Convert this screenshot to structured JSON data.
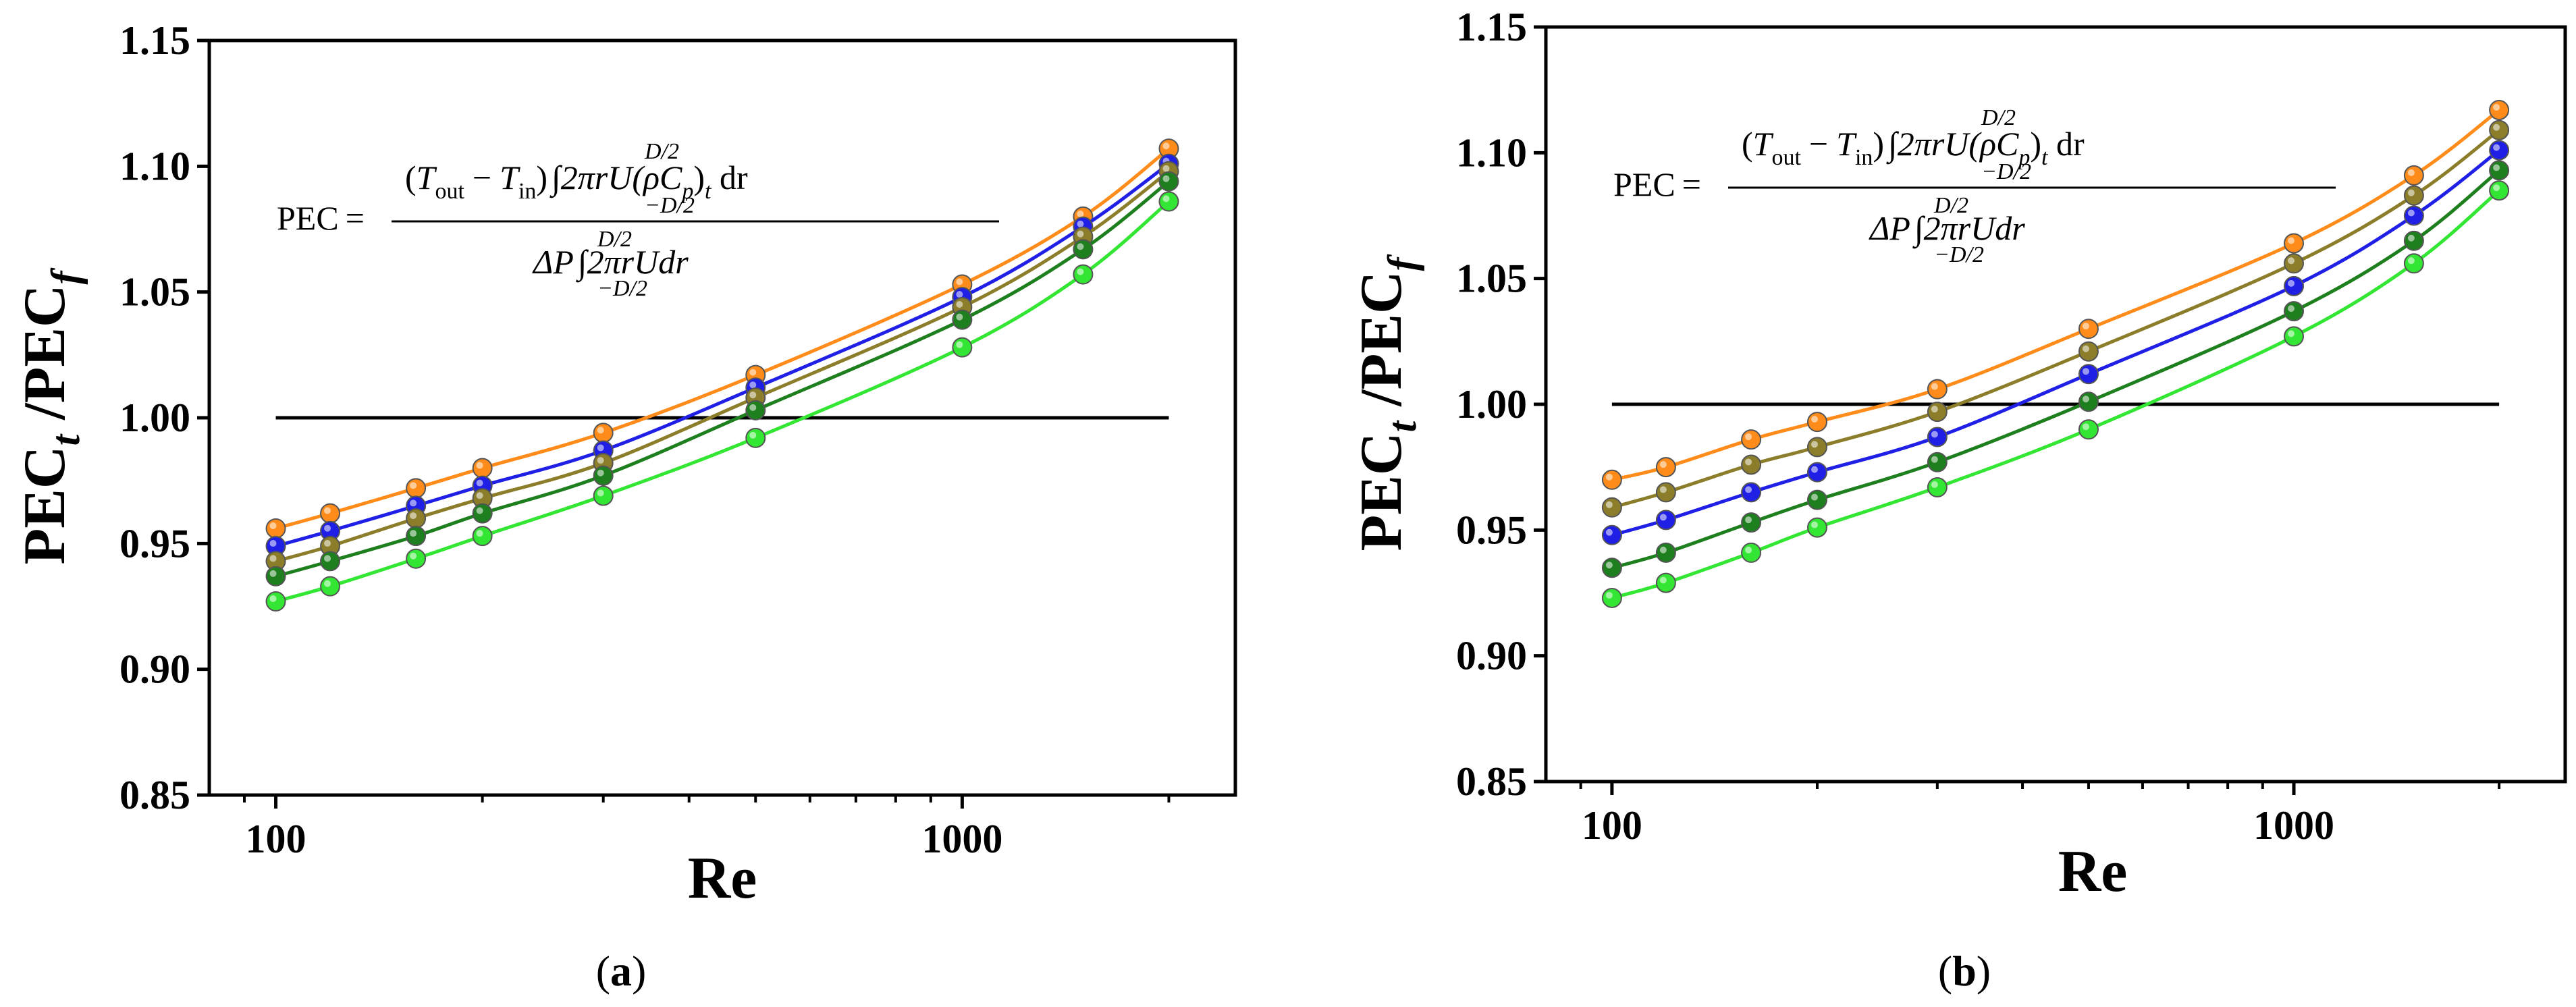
{
  "figure": {
    "panels": [
      {
        "caption": "(a)",
        "caption_letter": "a"
      },
      {
        "caption": "(b)",
        "caption_letter": "b"
      }
    ]
  },
  "formula": {
    "lhs": "PEC",
    "equals": "=",
    "numerator": {
      "T": "T",
      "out": "out",
      "minus": "−",
      "in": "in",
      "upper_limit": "D/2",
      "lower_limit": "−D/2",
      "integrand": "2πrU(ρC",
      "sub_p": "p",
      "close": ")",
      "sub_t": "t",
      "dr": " dr"
    },
    "denominator": {
      "delta_p": "ΔP",
      "upper_limit": "D/2",
      "lower_limit": "−D/2",
      "integrand": "2πrUdr"
    }
  },
  "chart_data": [
    {
      "type": "line",
      "panel": "a",
      "xlabel": "Re",
      "ylabel": "PEC_t / PEC_f",
      "xscale": "log",
      "xlim": [
        80,
        2500
      ],
      "ylim": [
        0.85,
        1.15
      ],
      "xticks": [
        100,
        1000
      ],
      "xtick_labels": [
        "100",
        "1000"
      ],
      "yticks": [
        0.85,
        0.9,
        0.95,
        1.0,
        1.05,
        1.1,
        1.15
      ],
      "ytick_labels": [
        "0.85",
        "0.90",
        "0.95",
        "1.00",
        "1.05",
        "1.10",
        "1.15"
      ],
      "reference_line": {
        "y": 1.0,
        "x_from": 100,
        "x_to": 2000,
        "color": "#000000"
      },
      "x": [
        100,
        120,
        160,
        200,
        300,
        500,
        1000,
        1500,
        2000
      ],
      "series": [
        {
          "name": "orange",
          "color": "#ff8c1a",
          "values": [
            0.956,
            0.962,
            0.972,
            0.98,
            0.994,
            1.017,
            1.053,
            1.08,
            1.107
          ]
        },
        {
          "name": "blue",
          "color": "#1f1fe6",
          "values": [
            0.949,
            0.955,
            0.965,
            0.973,
            0.987,
            1.012,
            1.048,
            1.076,
            1.101
          ]
        },
        {
          "name": "olive",
          "color": "#8b7d2a",
          "values": [
            0.943,
            0.949,
            0.96,
            0.968,
            0.982,
            1.008,
            1.044,
            1.072,
            1.098
          ]
        },
        {
          "name": "dark-green",
          "color": "#1e7f1e",
          "values": [
            0.937,
            0.943,
            0.953,
            0.962,
            0.977,
            1.003,
            1.039,
            1.067,
            1.094
          ]
        },
        {
          "name": "bright-green",
          "color": "#33e633",
          "values": [
            0.927,
            0.933,
            0.944,
            0.953,
            0.969,
            0.992,
            1.028,
            1.057,
            1.086
          ]
        }
      ]
    },
    {
      "type": "line",
      "panel": "b",
      "xlabel": "Re",
      "ylabel": "PEC_t / PEC_f",
      "xscale": "log",
      "xlim": [
        80,
        2500
      ],
      "ylim": [
        0.85,
        1.15
      ],
      "xticks": [
        100,
        1000
      ],
      "xtick_labels": [
        "100",
        "1000"
      ],
      "yticks": [
        0.85,
        0.9,
        0.95,
        1.0,
        1.05,
        1.1,
        1.15
      ],
      "ytick_labels": [
        "0.85",
        "0.90",
        "0.95",
        "1.00",
        "1.05",
        "1.10",
        "1.15"
      ],
      "reference_line": {
        "y": 1.0,
        "x_from": 100,
        "x_to": 2000,
        "color": "#000000"
      },
      "x": [
        100,
        120,
        160,
        200,
        300,
        500,
        1000,
        1500,
        2000
      ],
      "series": [
        {
          "name": "orange",
          "color": "#ff8c1a",
          "values": [
            0.97,
            0.975,
            0.986,
            0.993,
            1.006,
            1.03,
            1.064,
            1.091,
            1.117
          ]
        },
        {
          "name": "olive",
          "color": "#8b7d2a",
          "values": [
            0.959,
            0.965,
            0.976,
            0.983,
            0.997,
            1.021,
            1.056,
            1.083,
            1.109
          ]
        },
        {
          "name": "blue",
          "color": "#1f1fe6",
          "values": [
            0.948,
            0.954,
            0.965,
            0.973,
            0.987,
            1.012,
            1.047,
            1.075,
            1.101
          ]
        },
        {
          "name": "dark-green",
          "color": "#1e7f1e",
          "values": [
            0.935,
            0.941,
            0.953,
            0.962,
            0.977,
            1.001,
            1.037,
            1.065,
            1.093
          ]
        },
        {
          "name": "bright-green",
          "color": "#33e633",
          "values": [
            0.923,
            0.929,
            0.941,
            0.951,
            0.967,
            0.99,
            1.027,
            1.056,
            1.085
          ]
        }
      ]
    }
  ]
}
